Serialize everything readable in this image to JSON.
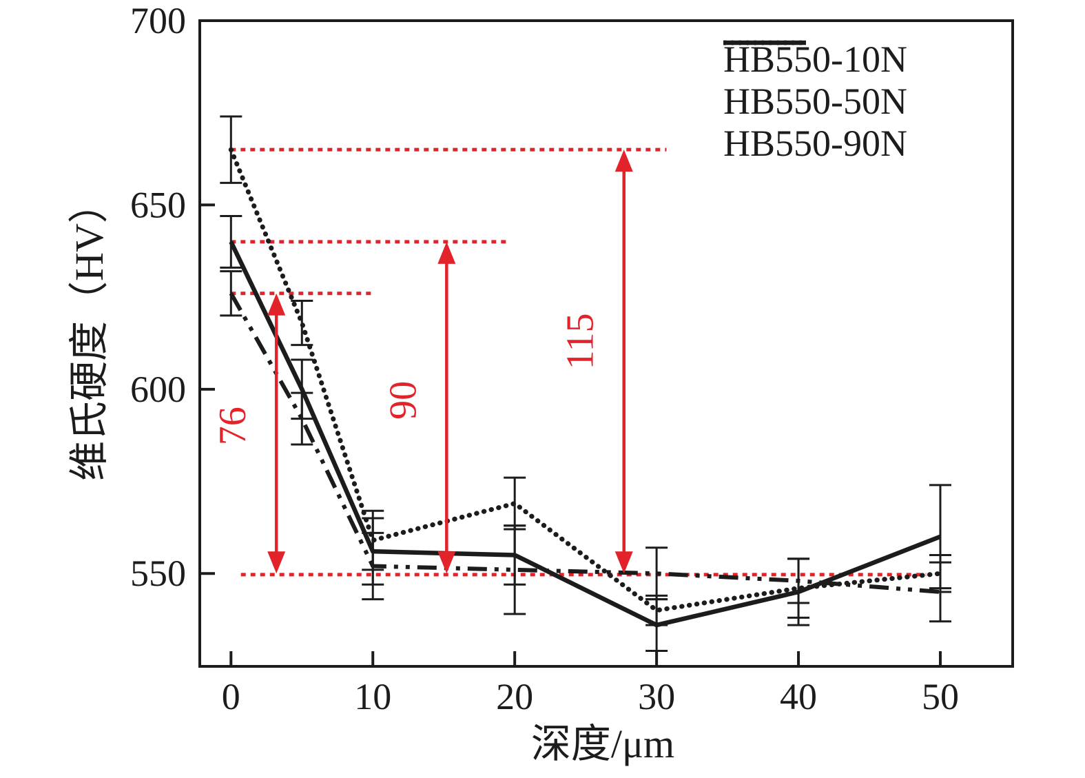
{
  "figure": {
    "background": "#ffffff",
    "text_color": "#1c1c1c",
    "annotation_color": "#e2232a"
  },
  "chart_data": {
    "type": "line",
    "title": "",
    "xlabel": "深度/μm",
    "ylabel": "维氏硬度（HV）",
    "x": [
      0,
      5,
      10,
      20,
      30,
      40,
      50
    ],
    "x_ticks": [
      0,
      10,
      20,
      30,
      40,
      50
    ],
    "y_ticks": [
      550,
      600,
      650,
      700
    ],
    "xlim": [
      -2.2,
      55.1
    ],
    "ylim": [
      524.8,
      700
    ],
    "grid": false,
    "legend_position": "top-right",
    "series": [
      {
        "name": "HB550-10N",
        "line_style": "dash-dot-dot",
        "color": "#1c1c1c",
        "values": [
          626,
          592,
          552,
          551,
          550,
          548,
          545
        ],
        "errors": [
          6,
          7,
          9,
          12,
          7,
          6,
          8
        ]
      },
      {
        "name": "HB550-50N",
        "line_style": "solid",
        "color": "#1c1c1c",
        "values": [
          640,
          600,
          556,
          555,
          536,
          545,
          560
        ],
        "errors": [
          7,
          8,
          9,
          8,
          7,
          9,
          14
        ]
      },
      {
        "name": "HB550-90N",
        "line_style": "dotted",
        "color": "#1c1c1c",
        "values": [
          665,
          618,
          559,
          569,
          540,
          546,
          550
        ],
        "errors": [
          9,
          6,
          8,
          7,
          4,
          8,
          5
        ]
      }
    ],
    "annotations": {
      "color": "#e2232a",
      "reference_lines": [
        {
          "hv": 665,
          "x_from": 0.0,
          "x_to": 30.7
        },
        {
          "hv": 640,
          "x_from": 0.0,
          "x_to": 19.7
        },
        {
          "hv": 626,
          "x_from": 0.0,
          "x_to": 10.15
        },
        {
          "hv": 549.7,
          "x_from": 0.7,
          "x_to": 49.0
        }
      ],
      "arrows": [
        {
          "label": "76",
          "x": 3.2,
          "hv_from": 550,
          "hv_to": 626,
          "label_hv": 590
        },
        {
          "label": "90",
          "x": 15.2,
          "hv_from": 550,
          "hv_to": 640,
          "label_hv": 597
        },
        {
          "label": "115",
          "x": 27.7,
          "hv_from": 550,
          "hv_to": 665,
          "label_hv": 613
        }
      ]
    }
  }
}
